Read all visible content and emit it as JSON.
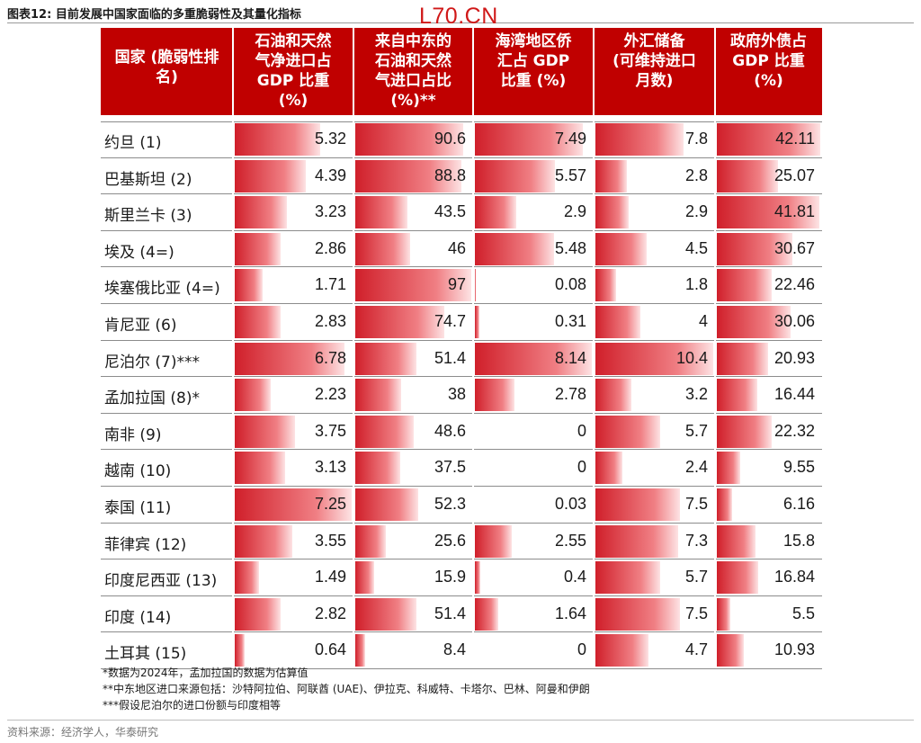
{
  "title": "图表12:  目前发展中国家面临的多重脆弱性及其量化指标",
  "watermark": "L70.CN",
  "source": "资料来源：经济学人，华泰研究",
  "notes": [
    "*数据为2024年，孟加拉国的数据为估算值",
    "**中东地区进口来源包括：沙特阿拉伯、阿联酋 (UAE)、伊拉克、科威特、卡塔尔、巴林、阿曼和伊朗",
    "***假设尼泊尔的进口份额与印度相等"
  ],
  "colors": {
    "header_bg": "#c00000",
    "bar_dark": "#d01f2a",
    "bar_light": "#f07f84",
    "text": "#1a1a1a"
  },
  "chart_data": {
    "type": "table",
    "columns": [
      "国家 (脆弱性排名)",
      "石油和天然气净进口占GDP 比重(%)",
      "来自中东的石油和天然气进口占比 (%)**",
      "海湾地区侨汇占 GDP 比重 (%)",
      "外汇储备 (可维持进口月数)",
      "政府外债占 GDP 比重 (%)"
    ],
    "header_lines": [
      [
        "国家 (脆弱性排",
        "名)"
      ],
      [
        "石油和天然",
        "气净进口占",
        "GDP 比重",
        "(%)"
      ],
      [
        "来自中东的",
        "石油和天然",
        "气进口占比",
        "(%)**"
      ],
      [
        "海湾地区侨",
        "汇占 GDP",
        "比重 (%)"
      ],
      [
        "外汇储备",
        "(可维持进口",
        "月数)"
      ],
      [
        "政府外债占",
        "GDP 比重",
        "(%)"
      ]
    ],
    "rows": [
      {
        "country": "约旦 (1)",
        "oil_import_gdp": "5.32",
        "mideast_share": "90.6",
        "gulf_remit": "7.49",
        "fx_months": "7.8",
        "ext_debt": "42.11"
      },
      {
        "country": "巴基斯坦 (2)",
        "oil_import_gdp": "4.39",
        "mideast_share": "88.8",
        "gulf_remit": "5.57",
        "fx_months": "2.8",
        "ext_debt": "25.07"
      },
      {
        "country": "斯里兰卡 (3)",
        "oil_import_gdp": "3.23",
        "mideast_share": "43.5",
        "gulf_remit": "2.9",
        "fx_months": "2.9",
        "ext_debt": "41.81"
      },
      {
        "country": "埃及 (4=)",
        "oil_import_gdp": "2.86",
        "mideast_share": "46",
        "gulf_remit": "5.48",
        "fx_months": "4.5",
        "ext_debt": "30.67"
      },
      {
        "country": "埃塞俄比亚 (4=)",
        "oil_import_gdp": "1.71",
        "mideast_share": "97",
        "gulf_remit": "0.08",
        "fx_months": "1.8",
        "ext_debt": "22.46"
      },
      {
        "country": "肯尼亚 (6)",
        "oil_import_gdp": "2.83",
        "mideast_share": "74.7",
        "gulf_remit": "0.31",
        "fx_months": "4",
        "ext_debt": "30.06"
      },
      {
        "country": "尼泊尔 (7)***",
        "oil_import_gdp": "6.78",
        "mideast_share": "51.4",
        "gulf_remit": "8.14",
        "fx_months": "10.4",
        "ext_debt": "20.93"
      },
      {
        "country": "孟加拉国 (8)*",
        "oil_import_gdp": "2.23",
        "mideast_share": "38",
        "gulf_remit": "2.78",
        "fx_months": "3.2",
        "ext_debt": "16.44"
      },
      {
        "country": "南非 (9)",
        "oil_import_gdp": "3.75",
        "mideast_share": "48.6",
        "gulf_remit": "0",
        "fx_months": "5.7",
        "ext_debt": "22.32"
      },
      {
        "country": "越南 (10)",
        "oil_import_gdp": "3.13",
        "mideast_share": "37.5",
        "gulf_remit": "0",
        "fx_months": "2.4",
        "ext_debt": "9.55"
      },
      {
        "country": "泰国 (11)",
        "oil_import_gdp": "7.25",
        "mideast_share": "52.3",
        "gulf_remit": "0.03",
        "fx_months": "7.5",
        "ext_debt": "6.16"
      },
      {
        "country": "菲律宾 (12)",
        "oil_import_gdp": "3.55",
        "mideast_share": "25.6",
        "gulf_remit": "2.55",
        "fx_months": "7.3",
        "ext_debt": "15.8"
      },
      {
        "country": "印度尼西亚 (13)",
        "oil_import_gdp": "1.49",
        "mideast_share": "15.9",
        "gulf_remit": "0.4",
        "fx_months": "5.7",
        "ext_debt": "16.84"
      },
      {
        "country": "印度 (14)",
        "oil_import_gdp": "2.82",
        "mideast_share": "51.4",
        "gulf_remit": "1.64",
        "fx_months": "7.5",
        "ext_debt": "5.5"
      },
      {
        "country": "土耳其 (15)",
        "oil_import_gdp": "0.64",
        "mideast_share": "8.4",
        "gulf_remit": "0",
        "fx_months": "4.7",
        "ext_debt": "10.93"
      }
    ],
    "value_keys": [
      "oil_import_gdp",
      "mideast_share",
      "gulf_remit",
      "fx_months",
      "ext_debt"
    ],
    "bar_max": [
      7.25,
      97,
      8.14,
      10.4,
      42.11
    ]
  }
}
